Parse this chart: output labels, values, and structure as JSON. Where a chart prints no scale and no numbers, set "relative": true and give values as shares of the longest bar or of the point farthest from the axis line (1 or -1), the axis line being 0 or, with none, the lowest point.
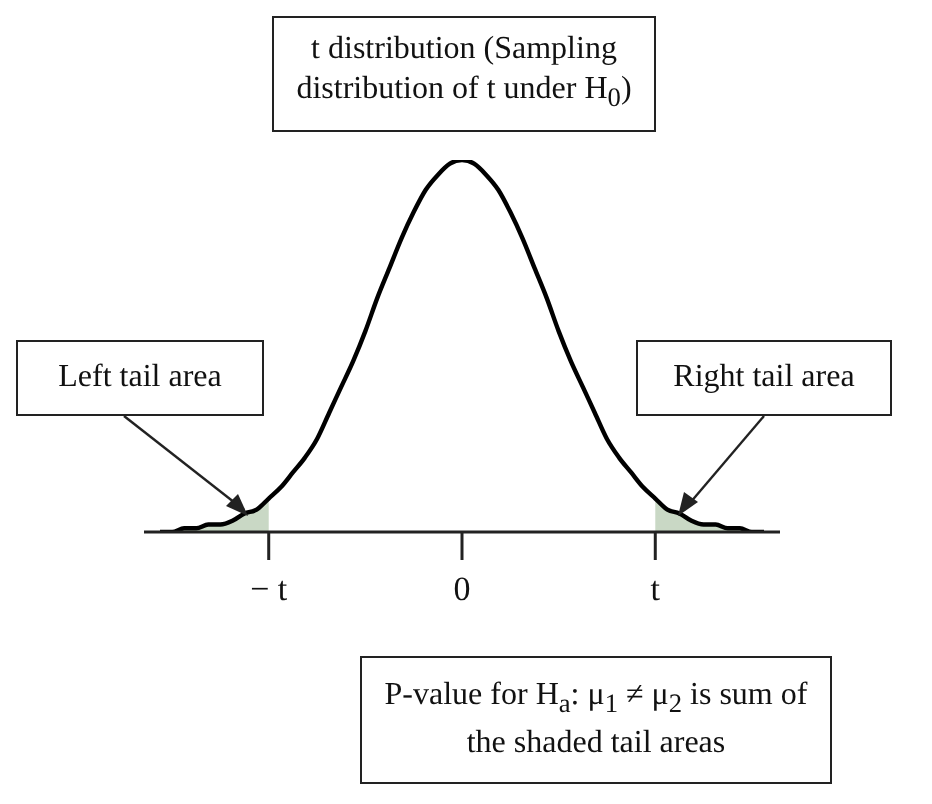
{
  "chart_data": {
    "type": "line",
    "relative": true,
    "title": "t distribution (Sampling distribution of t under H$_{0}$)",
    "categories": [
      null,
      null,
      null,
      null,
      null,
      null,
      null,
      null,
      null,
      "− t",
      null,
      null,
      null,
      null,
      null,
      null,
      null,
      null,
      null,
      null,
      null,
      null,
      null,
      null,
      null,
      "0",
      null,
      null,
      null,
      null,
      null,
      null,
      null,
      null,
      null,
      null,
      null,
      null,
      null,
      null,
      null,
      "t",
      null,
      null,
      null,
      null,
      null,
      null,
      null,
      null,
      null
    ],
    "series": [
      {
        "type": "area",
        "color": "#c9d8c5",
        "values": [
          0,
          0,
          0.01,
          0.01,
          0.02,
          0.02,
          0.03,
          0.05,
          0.06,
          0.09,
          null,
          null,
          null,
          null,
          null,
          null,
          null,
          null,
          null,
          null,
          null,
          null,
          null,
          null,
          null,
          null,
          null,
          null,
          null,
          null,
          null,
          null,
          null,
          null,
          null,
          null,
          null,
          null,
          null,
          null,
          null,
          0.09,
          0.06,
          0.05,
          0.03,
          0.02,
          0.02,
          0.01,
          0.01,
          0,
          0
        ]
      },
      {
        "color": "#000000",
        "values": [
          0,
          0,
          0.01,
          0.01,
          0.02,
          0.02,
          0.03,
          0.05,
          0.06,
          0.09,
          0.12,
          0.16,
          0.2,
          0.25,
          0.32,
          0.39,
          0.46,
          0.54,
          0.63,
          0.71,
          0.79,
          0.86,
          0.92,
          0.96,
          0.99,
          1,
          0.99,
          0.96,
          0.92,
          0.86,
          0.79,
          0.71,
          0.63,
          0.54,
          0.46,
          0.39,
          0.32,
          0.25,
          0.2,
          0.16,
          0.12,
          0.09,
          0.06,
          0.05,
          0.03,
          0.02,
          0.02,
          0.01,
          0.01,
          0,
          0
        ]
      }
    ],
    "annotations": [
      "Left tail area",
      "Right tail area",
      "P-value for H$_{a}$: μ$_{1}$ ≠ μ$_{2}$ is sum of the shaded tail areas"
    ]
  }
}
